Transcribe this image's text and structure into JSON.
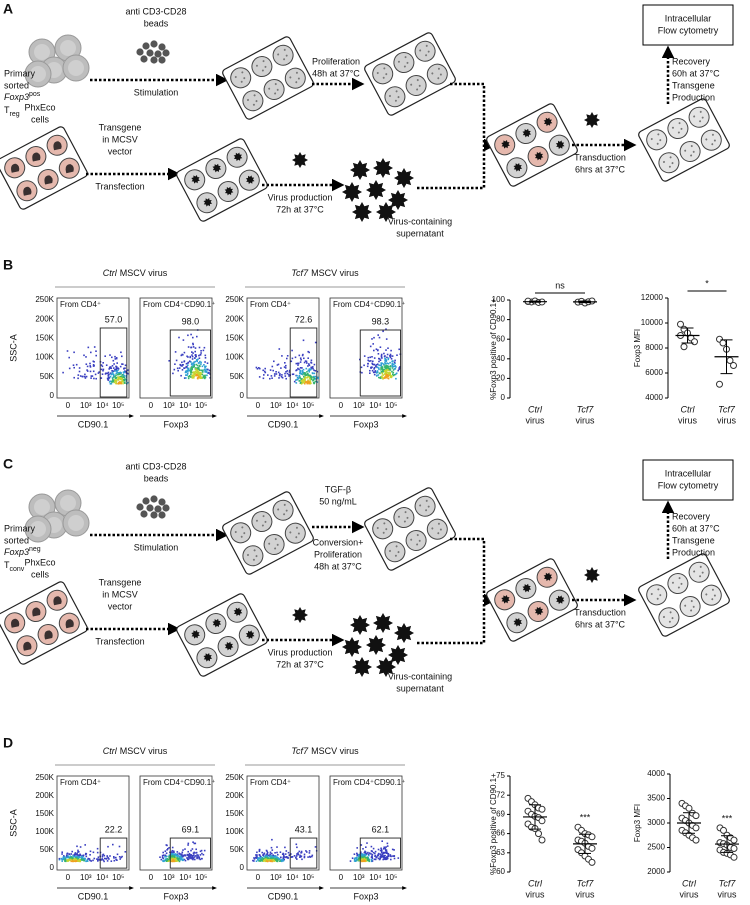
{
  "figure": {
    "A": {
      "label": "A",
      "cells": [
        "Primary",
        "sorted"
      ],
      "gene": {
        "name": "Foxp3",
        "sup": "pos"
      },
      "cell": {
        "main": "T",
        "sub": "reg"
      },
      "beads": [
        "anti CD3-CD28",
        "beads"
      ],
      "stim": "Stimulation",
      "prolif": [
        "Proliferation",
        "48h at 37°C"
      ],
      "readout": [
        "Intracellular",
        "Flow cytometry"
      ],
      "recovery": [
        "Recovery",
        "60h at 37°C",
        "Transgene",
        "Production"
      ],
      "phx": [
        "PhxEco",
        "cells"
      ],
      "transgene": [
        "Transgene",
        "in MCSV",
        "vector"
      ],
      "transfection": "Transfection",
      "virus": [
        "Virus production",
        "72h at 37°C"
      ],
      "supernatant": [
        "Virus-containing",
        "supernatant"
      ],
      "transduction": [
        "Transduction",
        "6hrs at 37°C"
      ]
    },
    "B": {
      "label": "B",
      "headers": [
        {
          "gene": "Ctrl",
          "rest": "MSCV virus"
        },
        {
          "gene": "Tcf7",
          "rest": "MSCV virus"
        }
      ],
      "ylabel": "SSC-A",
      "yticks": [
        "250K",
        "200K",
        "150K",
        "100K",
        "50K",
        "0"
      ],
      "xticks": [
        "0",
        "10³",
        "10⁴",
        "10⁵"
      ],
      "plots": [
        {
          "title": "From CD4⁺",
          "gate": "57.0",
          "xlabel": "CD90.1"
        },
        {
          "title": "From CD4⁺CD90.1⁺",
          "gate": "98.0",
          "xlabel": "Foxp3"
        },
        {
          "title": "From CD4⁺",
          "gate": "72.6",
          "xlabel": "CD90.1"
        },
        {
          "title": "From CD4⁺CD90.1⁺",
          "gate": "98.3",
          "xlabel": "Foxp3"
        }
      ]
    },
    "C": {
      "label": "C",
      "cells": [
        "Primary",
        "sorted"
      ],
      "gene": {
        "name": "Foxp3",
        "sup": "neg"
      },
      "cell": {
        "main": "T",
        "sub": "conv"
      },
      "beads": [
        "anti CD3-CD28",
        "beads"
      ],
      "stim": "Stimulation",
      "prolif_top": [
        "TGF-β",
        "50 ng/mL"
      ],
      "prolif": [
        "Conversion+",
        "Proliferation",
        "48h at 37°C"
      ],
      "readout": [
        "Intracellular",
        "Flow cytometry"
      ],
      "recovery": [
        "Recovery",
        "60h at 37°C",
        "Transgene",
        "Production"
      ],
      "phx": [
        "PhxEco",
        "cells"
      ],
      "transgene": [
        "Transgene",
        "in MCSV",
        "vector"
      ],
      "transfection": "Transfection",
      "virus": [
        "Virus production",
        "72h at 37°C"
      ],
      "supernatant": [
        "Virus-containing",
        "supernatant"
      ],
      "transduction": [
        "Transduction",
        "6hrs at 37°C"
      ]
    },
    "D": {
      "label": "D",
      "headers": [
        {
          "gene": "Ctrl",
          "rest": "MSCV virus"
        },
        {
          "gene": "Tcf7",
          "rest": "MSCV virus"
        }
      ],
      "ylabel": "SSC-A",
      "yticks": [
        "250K",
        "200K",
        "150K",
        "100K",
        "50K",
        "0"
      ],
      "xticks": [
        "0",
        "10³",
        "10⁴",
        "10⁵"
      ],
      "plots": [
        {
          "title": "From CD4⁺",
          "gate": "22.2",
          "xlabel": "CD90.1"
        },
        {
          "title": "From CD4⁺CD90.1⁺",
          "gate": "69.1",
          "xlabel": "Foxp3"
        },
        {
          "title": "From CD4⁺",
          "gate": "43.1",
          "xlabel": "CD90.1"
        },
        {
          "title": "From CD4⁺CD90.1⁺",
          "gate": "62.1",
          "xlabel": "Foxp3"
        }
      ]
    }
  },
  "chart_data": [
    {
      "type": "strip",
      "ylabel": "%Foxp3 positive of CD90.1+",
      "categories": [
        "Ctrl",
        "Tcf7"
      ],
      "category_sub": "virus",
      "groups": [
        {
          "values": [
            98.5,
            98,
            99,
            97.5,
            98,
            98.8
          ],
          "mean": 98.3,
          "sd": 0.6
        },
        {
          "values": [
            97.8,
            98.6,
            96.9,
            98.2,
            99
          ],
          "mean": 98.1,
          "sd": 0.8
        }
      ],
      "ylim": [
        0,
        100
      ],
      "yticks": [
        0,
        20,
        40,
        60,
        80,
        100
      ],
      "annotation": "ns",
      "bracket": true,
      "color": "#333333"
    },
    {
      "type": "strip",
      "ylabel": "Foxp3 MFI",
      "categories": [
        "Ctrl",
        "Tcf7"
      ],
      "category_sub": "virus",
      "groups": [
        {
          "values": [
            9900,
            9500,
            9200,
            8800,
            8500,
            9000,
            8100
          ],
          "mean": 9000,
          "sd": 600
        },
        {
          "values": [
            8700,
            8400,
            7900,
            7000,
            6600,
            5100
          ],
          "mean": 7300,
          "sd": 1350
        }
      ],
      "ylim": [
        4000,
        12000
      ],
      "yticks": [
        4000,
        6000,
        8000,
        10000,
        12000
      ],
      "annotation": "*",
      "bracket": true,
      "color": "#333333"
    },
    {
      "type": "strip",
      "ylabel": "%Foxp3 positive of CD90.1+",
      "categories": [
        "Ctrl",
        "Tcf7"
      ],
      "category_sub": "virus",
      "groups": [
        {
          "values": [
            71.5,
            71,
            70.5,
            70,
            69.8,
            69.5,
            69,
            68.7,
            68.5,
            68,
            67.5,
            67,
            66.8,
            66,
            65
          ],
          "mean": 68.6,
          "sd": 1.9
        },
        {
          "values": [
            67,
            66.5,
            66,
            65.8,
            65.5,
            65,
            64.8,
            64.5,
            64,
            63.7,
            63.5,
            63,
            62.5,
            62,
            61.5
          ],
          "mean": 64.4,
          "sd": 1.5
        }
      ],
      "ylim": [
        60,
        75
      ],
      "yticks": [
        60,
        63,
        66,
        69,
        72,
        75
      ],
      "annotation": "***",
      "bracket": false,
      "color": "#333333"
    },
    {
      "type": "strip",
      "ylabel": "Foxp3 MFI",
      "categories": [
        "Ctrl",
        "Tcf7"
      ],
      "category_sub": "virus",
      "groups": [
        {
          "values": [
            3400,
            3350,
            3300,
            3200,
            3150,
            3100,
            3050,
            3000,
            2950,
            2900,
            2850,
            2800,
            2750,
            2700,
            2650
          ],
          "mean": 3000,
          "sd": 210
        },
        {
          "values": [
            2900,
            2850,
            2750,
            2700,
            2650,
            2600,
            2580,
            2550,
            2500,
            2480,
            2450,
            2400,
            2380,
            2350,
            2300
          ],
          "mean": 2570,
          "sd": 170
        }
      ],
      "ylim": [
        2000,
        4000
      ],
      "yticks": [
        2000,
        2500,
        3000,
        3500,
        4000
      ],
      "annotation": "***",
      "bracket": false,
      "color": "#333333"
    }
  ]
}
